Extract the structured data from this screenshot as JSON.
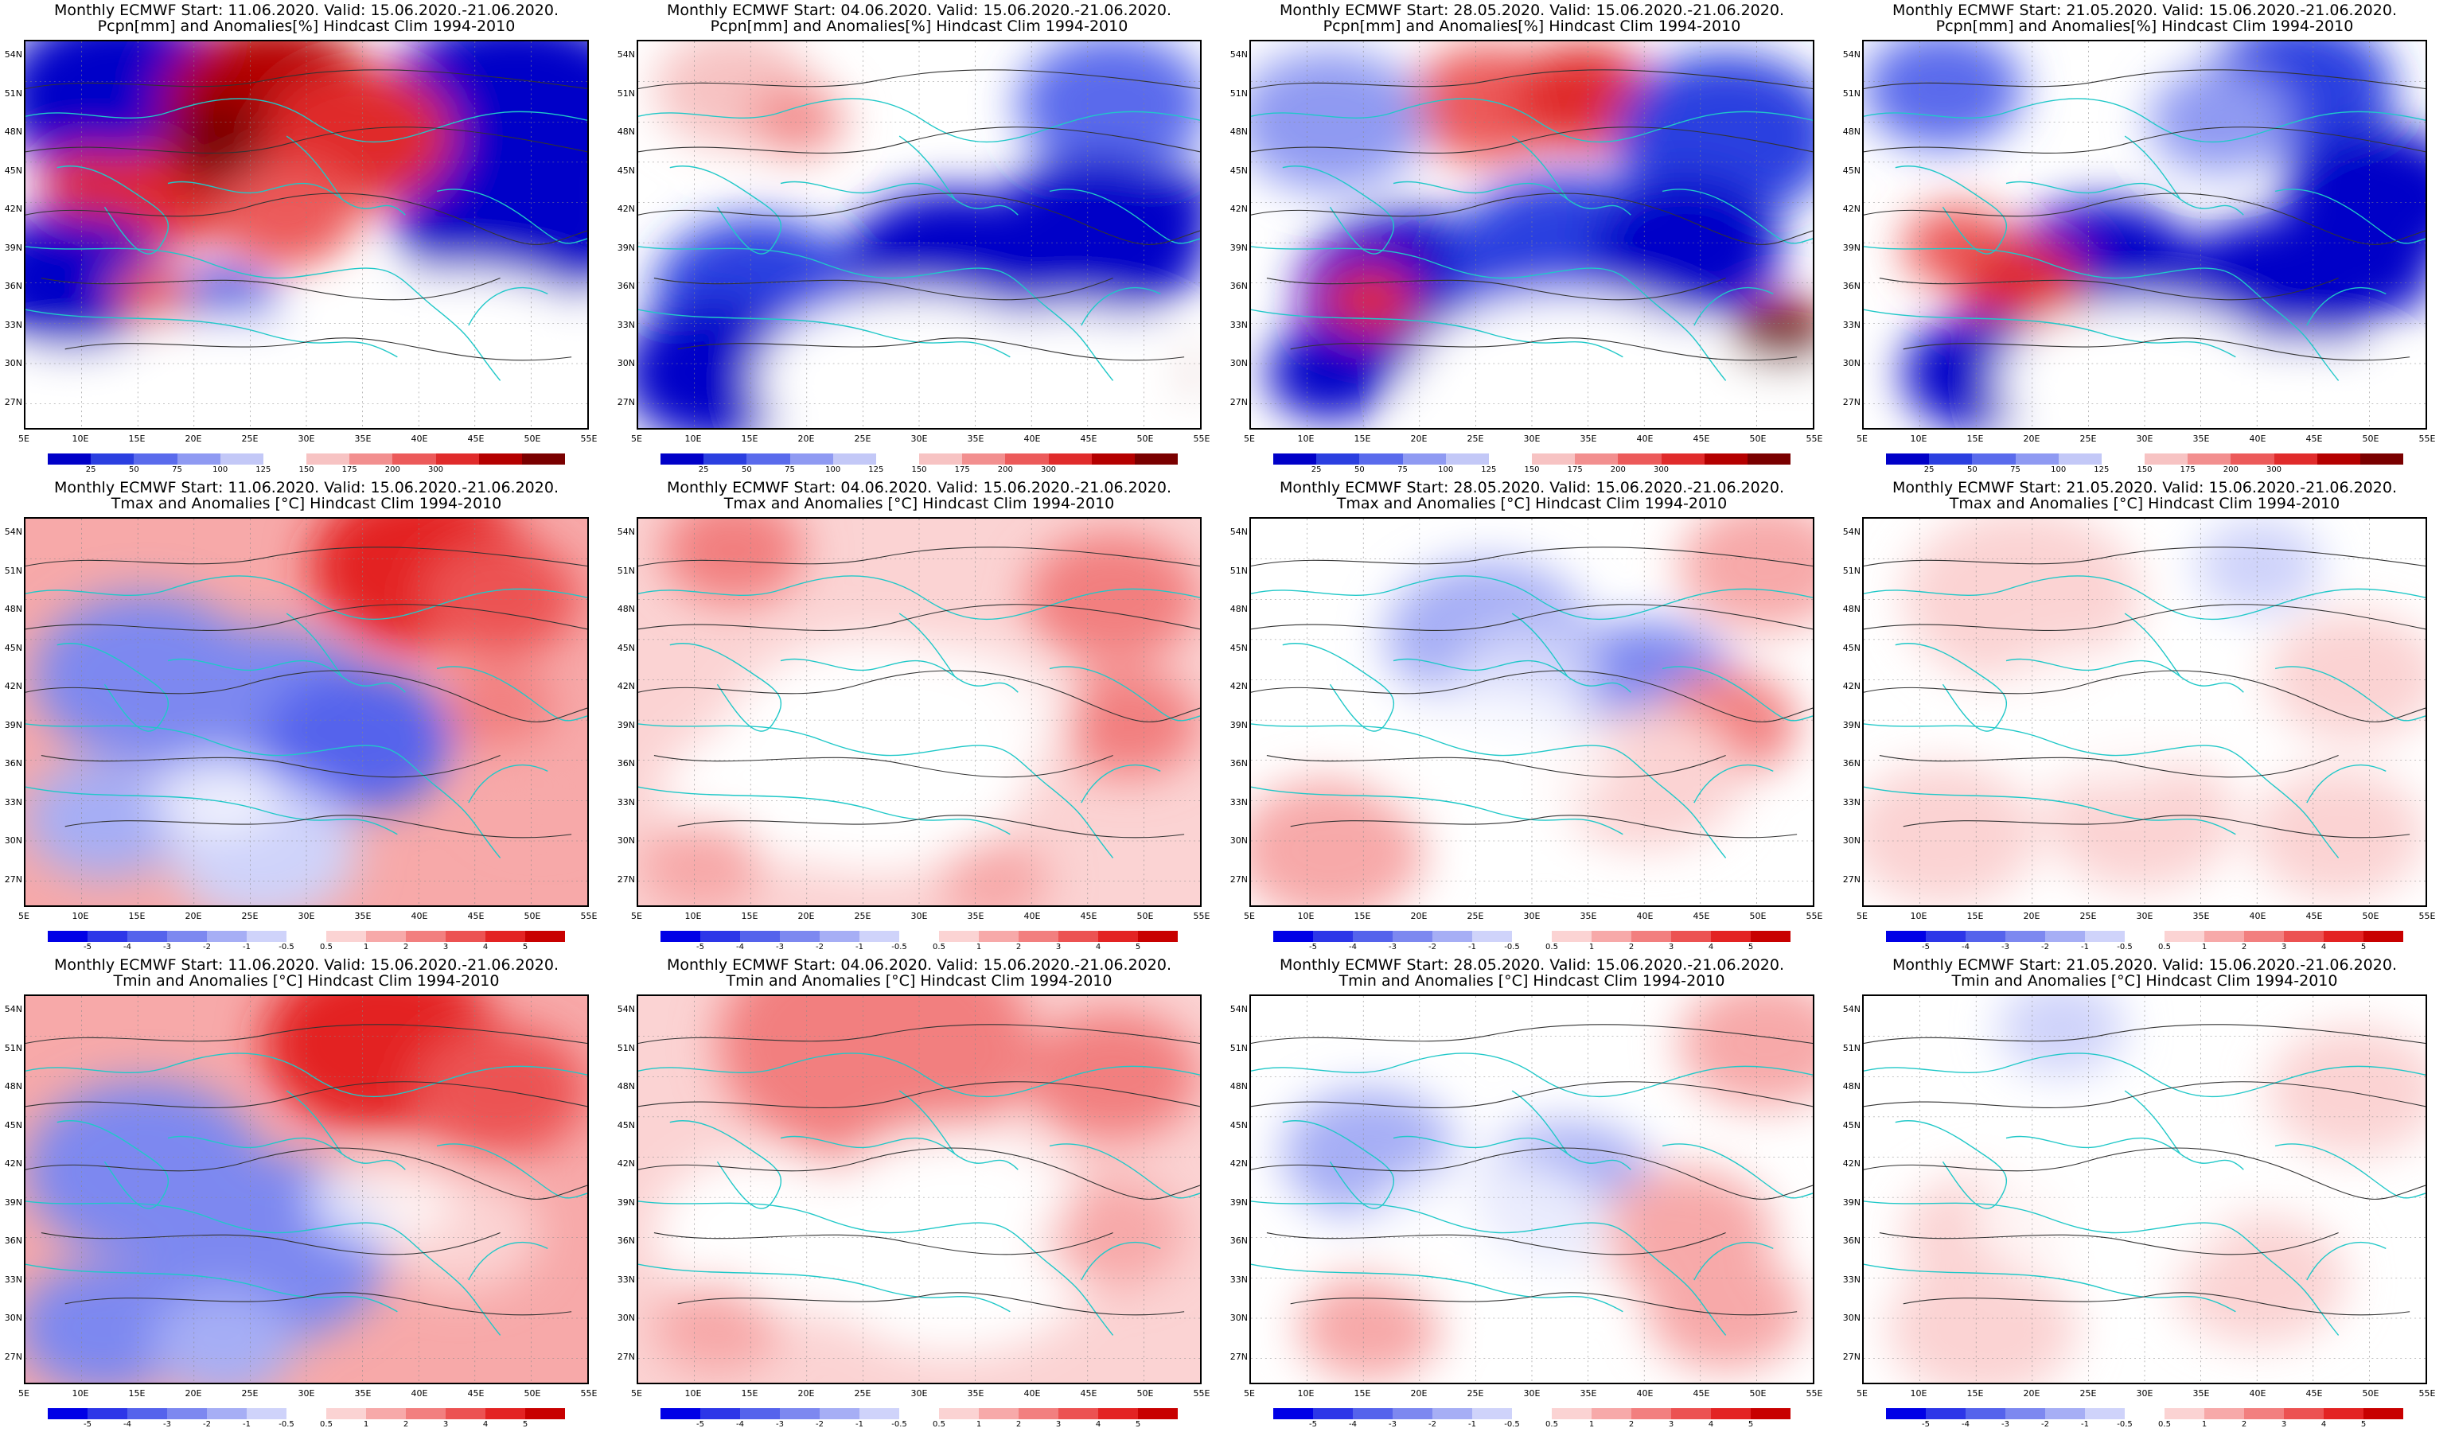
{
  "panels": [
    {
      "row": 0,
      "col": 0,
      "title1": "Monthly ECMWF Start: 11.06.2020. Valid: 15.06.2020.-21.06.2020.",
      "title2": "Pcpn[mm] and Anomalies[%] Hindcast Clim 1994-2010",
      "scale": "precip",
      "pattern": "p1"
    },
    {
      "row": 0,
      "col": 1,
      "title1": "Monthly ECMWF Start: 04.06.2020. Valid: 15.06.2020.-21.06.2020.",
      "title2": "Pcpn[mm] and Anomalies[%] Hindcast Clim 1994-2010",
      "scale": "precip",
      "pattern": "p2"
    },
    {
      "row": 0,
      "col": 2,
      "title1": "Monthly ECMWF Start: 28.05.2020. Valid: 15.06.2020.-21.06.2020.",
      "title2": "Pcpn[mm] and Anomalies[%] Hindcast Clim 1994-2010",
      "scale": "precip",
      "pattern": "p3"
    },
    {
      "row": 0,
      "col": 3,
      "title1": "Monthly ECMWF Start: 21.05.2020. Valid: 15.06.2020.-21.06.2020.",
      "title2": "Pcpn[mm] and Anomalies[%] Hindcast Clim 1994-2010",
      "scale": "precip",
      "pattern": "p4"
    },
    {
      "row": 1,
      "col": 0,
      "title1": "Monthly ECMWF Start: 11.06.2020. Valid: 15.06.2020.-21.06.2020.",
      "title2": "Tmax and Anomalies [°C] Hindcast Clim 1994-2010",
      "scale": "temp",
      "pattern": "t1"
    },
    {
      "row": 1,
      "col": 1,
      "title1": "Monthly ECMWF Start: 04.06.2020. Valid: 15.06.2020.-21.06.2020.",
      "title2": "Tmax and Anomalies [°C] Hindcast Clim 1994-2010",
      "scale": "temp",
      "pattern": "t2"
    },
    {
      "row": 1,
      "col": 2,
      "title1": "Monthly ECMWF Start: 28.05.2020. Valid: 15.06.2020.-21.06.2020.",
      "title2": "Tmax and Anomalies [°C] Hindcast Clim 1994-2010",
      "scale": "temp",
      "pattern": "t3"
    },
    {
      "row": 1,
      "col": 3,
      "title1": "Monthly ECMWF Start: 21.05.2020. Valid: 15.06.2020.-21.06.2020.",
      "title2": "Tmax and Anomalies [°C] Hindcast Clim 1994-2010",
      "scale": "temp",
      "pattern": "t4"
    },
    {
      "row": 2,
      "col": 0,
      "title1": "Monthly ECMWF Start: 11.06.2020. Valid: 15.06.2020.-21.06.2020.",
      "title2": "Tmin and Anomalies [°C] Hindcast Clim 1994-2010",
      "scale": "temp",
      "pattern": "n1"
    },
    {
      "row": 2,
      "col": 1,
      "title1": "Monthly ECMWF Start: 04.06.2020. Valid: 15.06.2020.-21.06.2020.",
      "title2": "Tmin and Anomalies [°C] Hindcast Clim 1994-2010",
      "scale": "temp",
      "pattern": "n2"
    },
    {
      "row": 2,
      "col": 2,
      "title1": "Monthly ECMWF Start: 28.05.2020. Valid: 15.06.2020.-21.06.2020.",
      "title2": "Tmin and Anomalies [°C] Hindcast Clim 1994-2010",
      "scale": "temp",
      "pattern": "n3"
    },
    {
      "row": 2,
      "col": 3,
      "title1": "Monthly ECMWF Start: 21.05.2020. Valid: 15.06.2020.-21.06.2020.",
      "title2": "Tmin and Anomalies [°C] Hindcast Clim 1994-2010",
      "scale": "temp",
      "pattern": "n4"
    }
  ],
  "axes": {
    "lat_labels": [
      "54N",
      "51N",
      "48N",
      "45N",
      "42N",
      "39N",
      "36N",
      "33N",
      "30N",
      "27N"
    ],
    "lon_labels": [
      "5E",
      "10E",
      "15E",
      "20E",
      "25E",
      "30E",
      "35E",
      "40E",
      "45E",
      "50E",
      "55E"
    ]
  },
  "colorbars": {
    "precip": {
      "labels": [
        "25",
        "50",
        "75",
        "100",
        "125",
        "150",
        "175",
        "200",
        "300"
      ],
      "colors": [
        "#0000c8",
        "#2b3fe0",
        "#5a6bec",
        "#8f9af2",
        "#c3c8f7",
        "#ffffff",
        "#f7c3c3",
        "#f28f8f",
        "#ec5a5a",
        "#e02b2b",
        "#b40000",
        "#7a0000"
      ]
    },
    "temp": {
      "labels": [
        "-5",
        "-4",
        "-3",
        "-2",
        "-1",
        "-0.5",
        "0.5",
        "1",
        "2",
        "3",
        "4",
        "5"
      ],
      "colors": [
        "#0000e6",
        "#2d36e8",
        "#5563ec",
        "#7d88f0",
        "#a6aef5",
        "#cfd3fa",
        "#ffffff",
        "#fbd3d3",
        "#f7a9a9",
        "#f27f7f",
        "#ec5252",
        "#e32323",
        "#c80000"
      ]
    }
  },
  "colors": {
    "coast": "#20c8c8",
    "contour": "#333333",
    "frame": "#000000",
    "grid": "#888888"
  }
}
